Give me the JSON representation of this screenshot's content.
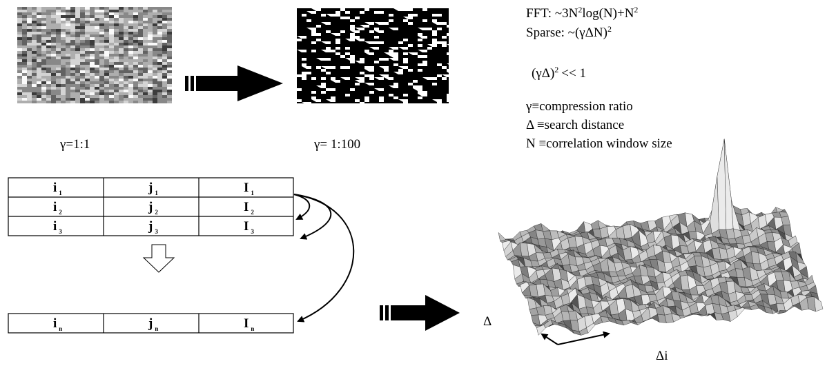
{
  "images": {
    "dense_caption": "γ=1:1",
    "sparse_caption": "γ= 1:100"
  },
  "formulas": {
    "fft": {
      "text": "FFT: ~3N",
      "sup1": "2",
      "mid": "log(N)+N",
      "sup2": "2"
    },
    "sparse": {
      "text": "Sparse: ~(γΔN)",
      "sup": "2"
    },
    "condition": {
      "text": "(γΔ)",
      "sup": "2",
      "rest": "<< 1"
    }
  },
  "definitions": [
    "γ≡compression ratio",
    "Δ ≡search distance",
    "N ≡correlation window size"
  ],
  "table": {
    "rows": [
      [
        {
          "main": "i",
          "sub": "1"
        },
        {
          "main": "j",
          "sub": "1"
        },
        {
          "main": "I",
          "sub": "1"
        }
      ],
      [
        {
          "main": "i",
          "sub": "2"
        },
        {
          "main": "j",
          "sub": "2"
        },
        {
          "main": "I",
          "sub": "2"
        }
      ],
      [
        {
          "main": "i",
          "sub": "3"
        },
        {
          "main": "j",
          "sub": "3"
        },
        {
          "main": "I",
          "sub": "3"
        }
      ],
      [
        {
          "main": "i",
          "sub": "n"
        },
        {
          "main": "j",
          "sub": "n"
        },
        {
          "main": "I",
          "sub": "n"
        }
      ]
    ]
  },
  "surface": {
    "axis_left": "Δ",
    "axis_right": "Δi"
  }
}
